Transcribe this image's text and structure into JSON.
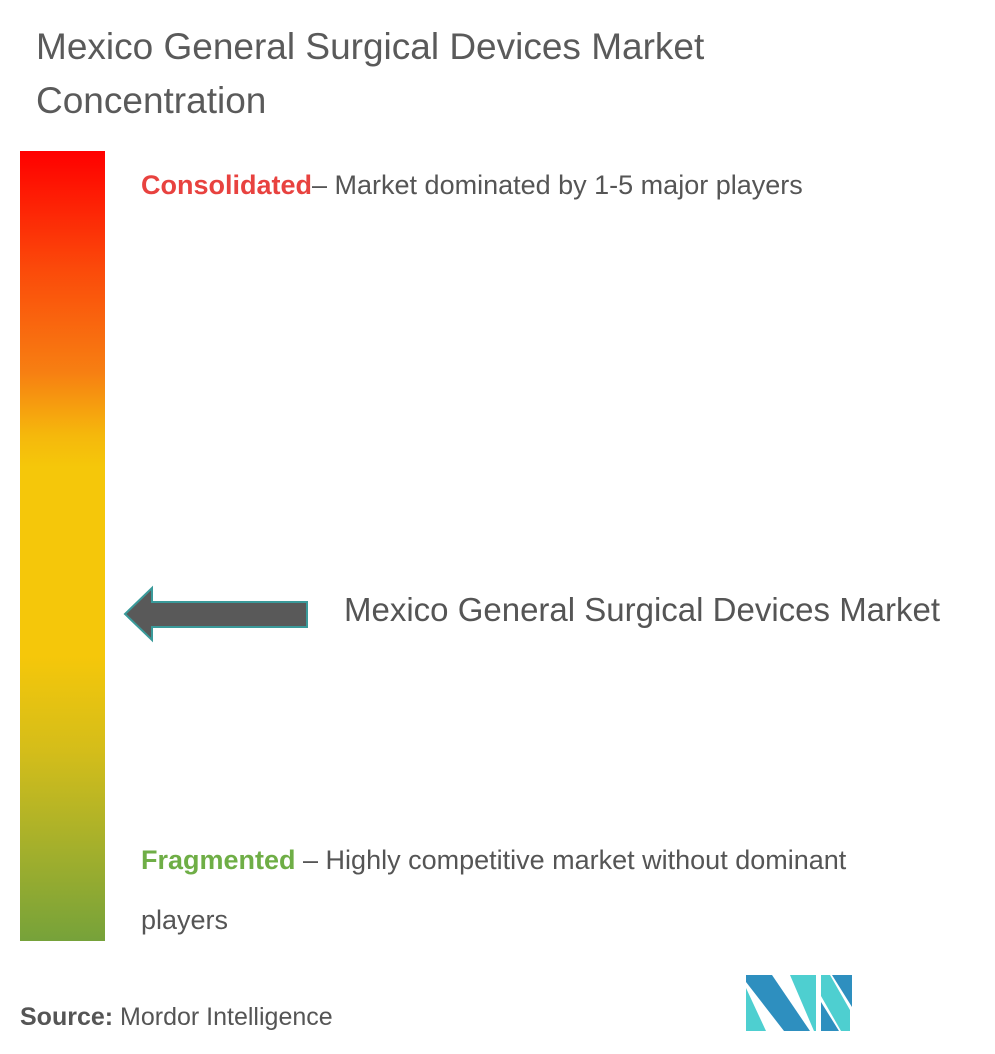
{
  "chart_data": {
    "type": "concentration-scale",
    "title": "Mexico General Surgical Devices Market Concentration",
    "scale": {
      "top": {
        "label": "Consolidated",
        "description": "– Market dominated by 1-5 major players",
        "color": "#ff0000"
      },
      "bottom": {
        "label": "Fragmented",
        "description": " – Highly competitive market without dominant players",
        "color": "#76a23a"
      }
    },
    "marker": {
      "label": "Mexico General Surgical Devices Market",
      "level_fraction_from_bottom": 0.42,
      "arrow_color": "#595959"
    }
  },
  "source": {
    "label": "Source:",
    "value": " Mordor Intelligence"
  },
  "logo": {
    "name": "mordor-intelligence-logo",
    "colors": [
      "#2e8fbf",
      "#4ecfd0"
    ]
  }
}
